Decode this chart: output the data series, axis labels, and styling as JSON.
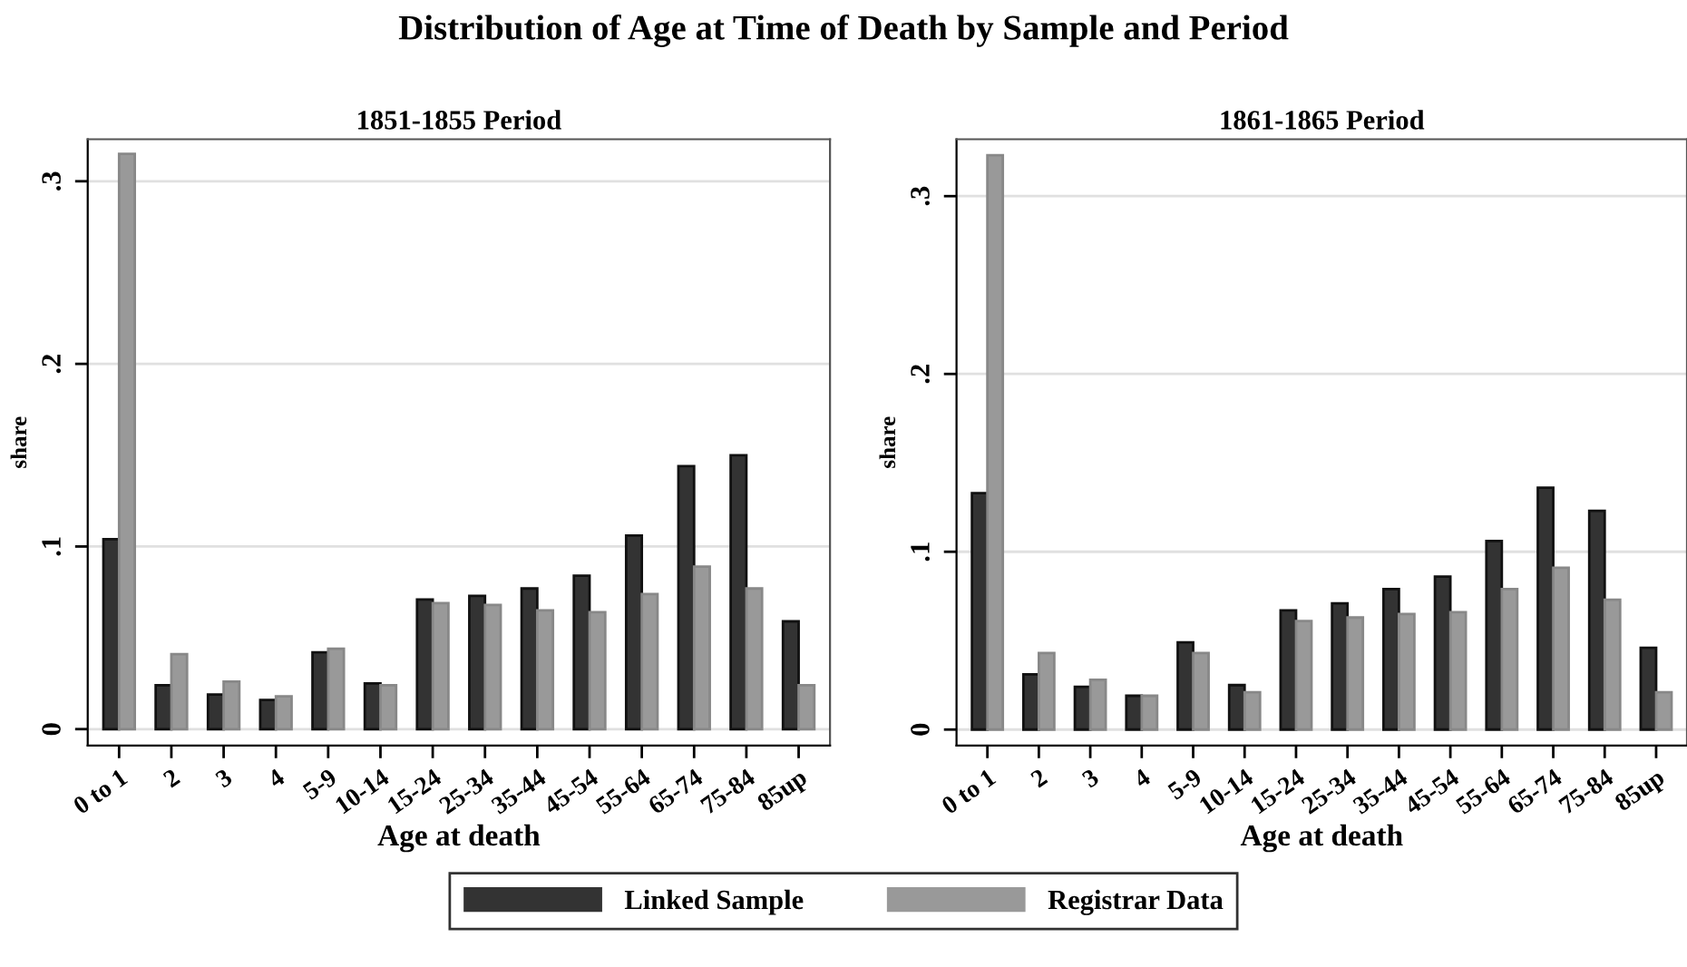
{
  "chart_data": [
    {
      "type": "bar",
      "title": "Distribution of Age at Time of Death by Sample and Period",
      "subtitle": "1851-1855 Period",
      "xlabel": "Age at death",
      "ylabel": "share",
      "categories": [
        "0 to 1",
        "2",
        "3",
        "4",
        "5-9",
        "10-14",
        "15-24",
        "25-34",
        "35-44",
        "45-54",
        "55-64",
        "65-74",
        "75-84",
        "85up"
      ],
      "series": [
        {
          "name": "Linked Sample",
          "color": "#333333",
          "values": [
            0.104,
            0.024,
            0.019,
            0.016,
            0.042,
            0.025,
            0.071,
            0.073,
            0.077,
            0.084,
            0.106,
            0.144,
            0.15,
            0.059
          ]
        },
        {
          "name": "Registrar Data",
          "color": "#999999",
          "values": [
            0.315,
            0.041,
            0.026,
            0.018,
            0.044,
            0.024,
            0.069,
            0.068,
            0.065,
            0.064,
            0.074,
            0.089,
            0.077,
            0.024
          ]
        }
      ],
      "ylim": [
        -0.009,
        0.323
      ],
      "yticks": [
        {
          "value": 0,
          "label": "0"
        },
        {
          "value": 0.1,
          "label": ".1"
        },
        {
          "value": 0.2,
          "label": ".2"
        },
        {
          "value": 0.3,
          "label": ".3"
        }
      ],
      "grid": "y",
      "legend": "bottom"
    },
    {
      "type": "bar",
      "subtitle": "1861-1865 Period",
      "xlabel": "Age at death",
      "ylabel": "share",
      "categories": [
        "0 to 1",
        "2",
        "3",
        "4",
        "5-9",
        "10-14",
        "15-24",
        "25-34",
        "35-44",
        "45-54",
        "55-64",
        "65-74",
        "75-84",
        "85up"
      ],
      "series": [
        {
          "color": "#333333",
          "values": [
            0.133,
            0.031,
            0.024,
            0.019,
            0.049,
            0.025,
            0.067,
            0.071,
            0.079,
            0.086,
            0.106,
            0.136,
            0.123,
            0.046
          ]
        },
        {
          "color": "#999999",
          "values": [
            0.323,
            0.043,
            0.028,
            0.019,
            0.043,
            0.021,
            0.061,
            0.063,
            0.065,
            0.066,
            0.079,
            0.091,
            0.073,
            0.021
          ]
        }
      ],
      "ylim": [
        -0.009,
        0.332
      ],
      "yticks": [
        {
          "value": 0,
          "label": "0"
        },
        {
          "value": 0.1,
          "label": ".1"
        },
        {
          "value": 0.2,
          "label": ".2"
        },
        {
          "value": 0.3,
          "label": ".3"
        }
      ],
      "grid": "y"
    }
  ]
}
